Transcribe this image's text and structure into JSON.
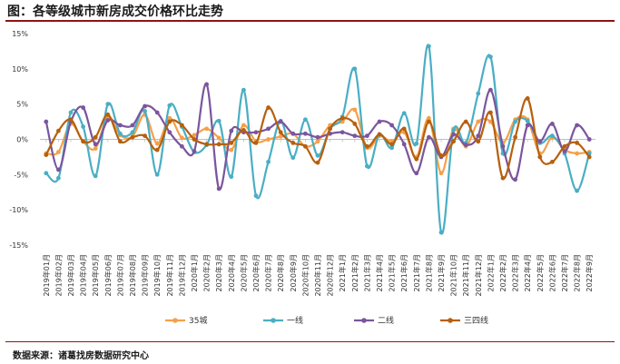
{
  "header": {
    "title": "图：各等级城市新房成交价格环比走势"
  },
  "footer": {
    "source": "数据来源：诸葛找房数据研究中心"
  },
  "chart_data": {
    "type": "line",
    "title": "",
    "xlabel": "",
    "ylabel": "",
    "ylim": [
      -15,
      15
    ],
    "y_ticks": [
      "15%",
      "10%",
      "5%",
      "0%",
      "-5%",
      "-10%",
      "-15%"
    ],
    "y_tick_values": [
      15,
      10,
      5,
      0,
      -5,
      -10,
      -15
    ],
    "grid": false,
    "legend_position": "bottom",
    "categories": [
      "2019年01月",
      "2019年02月",
      "2019年03月",
      "2019年04月",
      "2019年05月",
      "2019年06月",
      "2019年07月",
      "2019年08月",
      "2019年09月",
      "2019年10月",
      "2019年11月",
      "2019年12月",
      "2020年1月",
      "2020年2月",
      "2020年3月",
      "2020年4月",
      "2020年5月",
      "2020年6月",
      "2020年7月",
      "2020年8月",
      "2020年9月",
      "2020年10月",
      "2020年11月",
      "2020年12月",
      "2021年1月",
      "2021年2月",
      "2021年3月",
      "2021年4月",
      "2021年5月",
      "2021年6月",
      "2021年7月",
      "2021年8月",
      "2021年9月",
      "2021年10月",
      "2021年11月",
      "2021年12月",
      "2022年1月",
      "2022年2月",
      "2022年3月",
      "2022年4月",
      "2022年5月",
      "2022年6月",
      "2022年7月",
      "2022年8月",
      "2022年9月"
    ],
    "series": [
      {
        "name": "35城",
        "color": "#f5a04a",
        "values": [
          -2.0,
          -1.8,
          2.2,
          -0.3,
          -1.3,
          3.2,
          0.6,
          0.4,
          3.5,
          -0.6,
          3.0,
          0.2,
          0.6,
          1.5,
          0.2,
          -1.5,
          2.0,
          -0.3,
          0.0,
          0.4,
          0.8,
          -1.0,
          -0.3,
          2.0,
          2.5,
          4.2,
          -1.2,
          0.5,
          -0.3,
          1.0,
          -2.5,
          3.0,
          -4.8,
          1.5,
          -1.0,
          2.5,
          2.5,
          -0.5,
          2.8,
          2.8,
          -2.0,
          0.3,
          -1.5,
          -2.0,
          -1.8
        ]
      },
      {
        "name": "一线",
        "color": "#4aaec4",
        "values": [
          -4.8,
          -5.5,
          3.8,
          1.8,
          -5.2,
          5.0,
          0.8,
          1.0,
          4.0,
          -5.0,
          4.8,
          1.8,
          -1.8,
          -0.8,
          2.6,
          -5.3,
          7.0,
          -8.0,
          -3.2,
          2.6,
          -2.6,
          2.8,
          -2.3,
          1.5,
          3.2,
          10.0,
          -3.8,
          0.7,
          -1.2,
          3.7,
          -0.6,
          13.2,
          -13.2,
          1.3,
          -0.5,
          6.5,
          11.7,
          -2.0,
          2.5,
          2.6,
          -0.5,
          0.5,
          -2.0,
          -7.3,
          -2.0
        ]
      },
      {
        "name": "二线",
        "color": "#7b559d",
        "values": [
          2.5,
          -4.3,
          2.5,
          4.5,
          -0.7,
          2.7,
          2.0,
          2.0,
          4.7,
          3.8,
          1.0,
          -1.0,
          -1.7,
          7.8,
          -7.0,
          1.2,
          1.0,
          1.0,
          1.5,
          2.5,
          0.8,
          0.8,
          0.3,
          0.8,
          1.0,
          0.5,
          0.5,
          2.5,
          2.0,
          -0.7,
          -4.8,
          0.3,
          -2.5,
          0.7,
          -0.8,
          0.5,
          7.0,
          -1.0,
          -5.7,
          2.0,
          -0.3,
          2.2,
          -1.7,
          2.0,
          0.0
        ]
      },
      {
        "name": "三四线",
        "color": "#b6600e",
        "values": [
          -2.2,
          1.2,
          2.8,
          -0.3,
          0.3,
          3.5,
          -0.3,
          0.3,
          0.5,
          -1.5,
          2.5,
          2.0,
          0.0,
          -0.7,
          -0.7,
          -0.5,
          1.3,
          -0.5,
          4.5,
          1.0,
          -0.5,
          -1.0,
          -3.3,
          1.5,
          3.0,
          2.2,
          -1.0,
          0.7,
          -0.7,
          1.5,
          -2.8,
          2.5,
          -2.3,
          -0.3,
          2.5,
          -0.3,
          3.8,
          -5.5,
          0.3,
          5.8,
          -2.5,
          -3.2,
          -1.0,
          -0.5,
          -2.5
        ]
      }
    ]
  }
}
